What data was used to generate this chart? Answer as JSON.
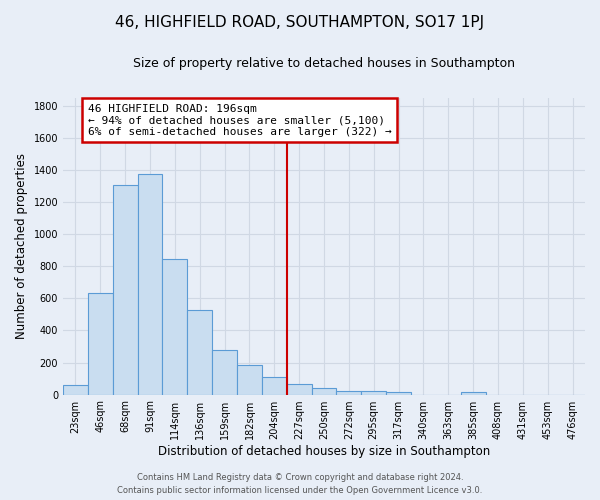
{
  "title": "46, HIGHFIELD ROAD, SOUTHAMPTON, SO17 1PJ",
  "subtitle": "Size of property relative to detached houses in Southampton",
  "xlabel": "Distribution of detached houses by size in Southampton",
  "ylabel": "Number of detached properties",
  "bar_labels": [
    "23sqm",
    "46sqm",
    "68sqm",
    "91sqm",
    "114sqm",
    "136sqm",
    "159sqm",
    "182sqm",
    "204sqm",
    "227sqm",
    "250sqm",
    "272sqm",
    "295sqm",
    "317sqm",
    "340sqm",
    "363sqm",
    "385sqm",
    "408sqm",
    "431sqm",
    "453sqm",
    "476sqm"
  ],
  "bar_values": [
    60,
    635,
    1305,
    1375,
    845,
    525,
    278,
    185,
    110,
    68,
    38,
    25,
    20,
    15,
    0,
    0,
    15,
    0,
    0,
    0,
    0
  ],
  "bar_color": "#c9ddf0",
  "bar_edge_color": "#5b9bd5",
  "ylim": [
    0,
    1850
  ],
  "yticks": [
    0,
    200,
    400,
    600,
    800,
    1000,
    1200,
    1400,
    1600,
    1800
  ],
  "vline_x_idx": 8,
  "vline_color": "#cc0000",
  "annotation_title": "46 HIGHFIELD ROAD: 196sqm",
  "annotation_line1": "← 94% of detached houses are smaller (5,100)",
  "annotation_line2": "6% of semi-detached houses are larger (322) →",
  "annotation_box_facecolor": "#ffffff",
  "annotation_box_edgecolor": "#cc0000",
  "footer1": "Contains HM Land Registry data © Crown copyright and database right 2024.",
  "footer2": "Contains public sector information licensed under the Open Government Licence v3.0.",
  "bg_color": "#e8eef7",
  "grid_color": "#d0d8e4",
  "title_fontsize": 11,
  "subtitle_fontsize": 9,
  "axis_label_fontsize": 8.5,
  "tick_fontsize": 7,
  "footer_fontsize": 6,
  "annotation_fontsize": 8
}
